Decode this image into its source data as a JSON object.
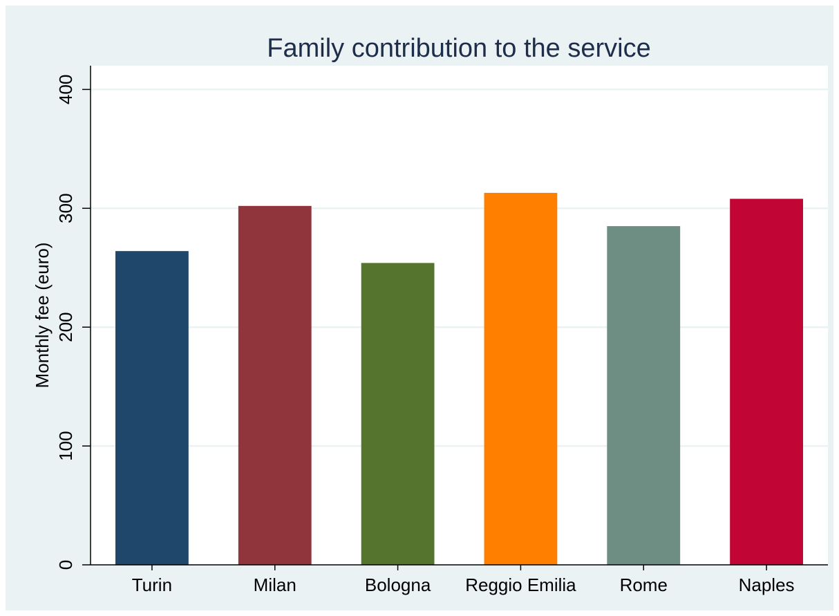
{
  "chart_data": {
    "type": "bar",
    "title": "Family contribution to the service",
    "xlabel": "",
    "ylabel": "Monthly fee (euro)",
    "categories": [
      "Turin",
      "Milan",
      "Bologna",
      "Reggio Emilia",
      "Rome",
      "Naples"
    ],
    "values": [
      264,
      302,
      254,
      313,
      285,
      308
    ],
    "colors": [
      "#1f476c",
      "#90353b",
      "#55752f",
      "#ff7f00",
      "#6e8e84",
      "#c10534"
    ],
    "ylim": [
      0,
      420
    ],
    "yticks": [
      0,
      100,
      200,
      300,
      400
    ],
    "ytick_labels": [
      "0",
      "100",
      "200",
      "300",
      "400"
    ],
    "grid": true,
    "legend": "none",
    "background": "#eaf2f3",
    "plot_background": "#ffffff",
    "grid_color": "#eaf2f3"
  }
}
